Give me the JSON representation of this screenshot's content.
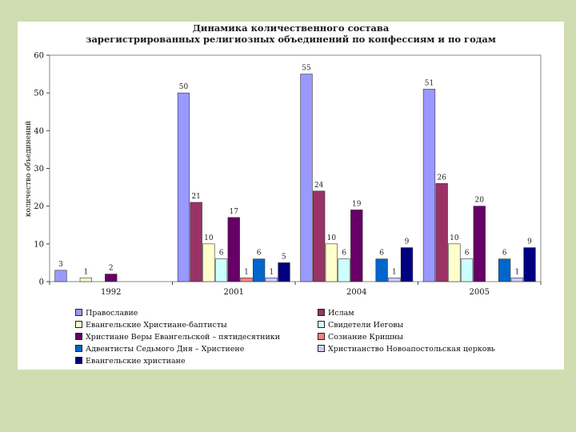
{
  "chart_data": {
    "type": "bar",
    "title_lines": [
      "Динамика количественного состава",
      "зарегистрированных религиозных объединений по конфессиям и по годам"
    ],
    "ylabel": "количество объединений",
    "ylim": [
      0,
      60
    ],
    "yticks": [
      0,
      10,
      20,
      30,
      40,
      50,
      60
    ],
    "categories": [
      "1992",
      "2001",
      "2004",
      "2005"
    ],
    "series": [
      {
        "name": "Православие",
        "color": "#9999ff",
        "values": [
          3,
          50,
          55,
          51
        ],
        "labels": [
          "3",
          "50",
          "55",
          "51"
        ]
      },
      {
        "name": "Ислам",
        "color": "#993366",
        "values": [
          null,
          21,
          24,
          26
        ],
        "labels": [
          "",
          "21",
          "24",
          "26"
        ]
      },
      {
        "name": "Евангельские Христиане-баптисты",
        "color": "#ffffcc",
        "values": [
          1,
          10,
          10,
          10
        ],
        "labels": [
          "1",
          "10",
          "10",
          "10"
        ]
      },
      {
        "name": "Свидетели Иеговы",
        "color": "#ccffff",
        "values": [
          null,
          6,
          6,
          6
        ],
        "labels": [
          "",
          "6",
          "6",
          "6"
        ]
      },
      {
        "name": "Христиане Веры Евангельской – пятидесятники",
        "color": "#660066",
        "values": [
          2,
          17,
          19,
          20
        ],
        "labels": [
          "2",
          "17",
          "19",
          "20"
        ]
      },
      {
        "name": "Сознание Кришны",
        "color": "#ff8080",
        "values": [
          null,
          1,
          null,
          null
        ],
        "labels": [
          "",
          "1",
          "",
          ""
        ]
      },
      {
        "name": "Адвентисты Седьмого Дня – Христиене",
        "color": "#0066cc",
        "values": [
          null,
          6,
          6,
          6
        ],
        "labels": [
          "",
          "6",
          "6",
          "6"
        ]
      },
      {
        "name": "Христианство Новоапостольская церковь",
        "color": "#ccccff",
        "values": [
          null,
          1,
          1,
          1
        ],
        "labels": [
          "",
          "1",
          "1",
          "1"
        ]
      },
      {
        "name": "Евангельские христиане",
        "color": "#000080",
        "values": [
          null,
          5,
          9,
          9
        ],
        "labels": [
          "",
          "5",
          "9",
          "9"
        ]
      }
    ],
    "grid": false,
    "legend": "bottom"
  }
}
